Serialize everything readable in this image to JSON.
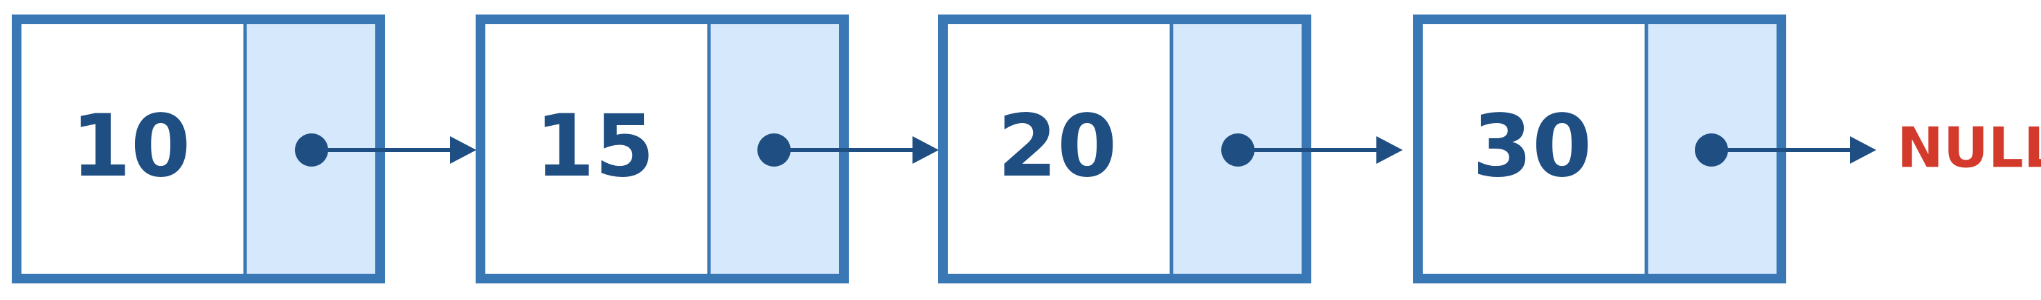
{
  "colors": {
    "border": "#3a78b5",
    "pointer_fill": "#d6e8fb",
    "data_fill": "#ffffff",
    "text": "#1f4e82",
    "arrow": "#1f4e82",
    "null_text": "#d33a2c"
  },
  "nodes": [
    {
      "value": "10"
    },
    {
      "value": "15"
    },
    {
      "value": "20"
    },
    {
      "value": "30"
    }
  ],
  "terminator": {
    "label": "NULL"
  }
}
